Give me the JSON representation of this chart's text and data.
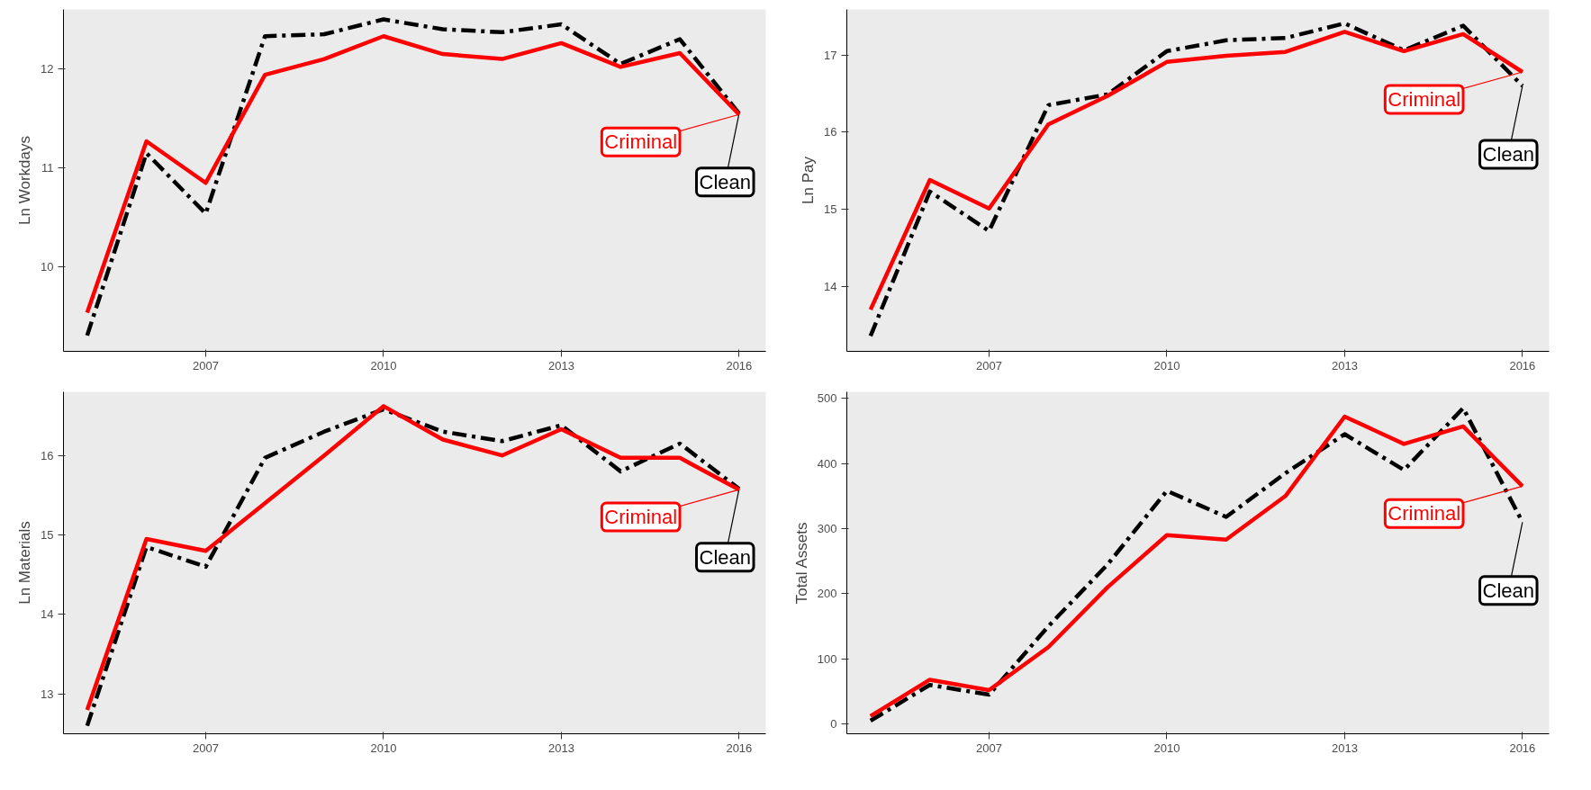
{
  "chart_data": [
    {
      "type": "line",
      "ylabel": "Ln Workdays",
      "x": [
        2005,
        2006,
        2007,
        2008,
        2009,
        2010,
        2011,
        2012,
        2013,
        2014,
        2015,
        2016
      ],
      "xlim": [
        2004.6,
        2016.45
      ],
      "xticks": [
        2007,
        2010,
        2013,
        2016
      ],
      "ylim": [
        9.15,
        12.6
      ],
      "yticks": [
        10,
        11,
        12
      ],
      "grid": false,
      "legend": false,
      "series": [
        {
          "name": "Clean",
          "color": "#000000",
          "line_style": "dashed",
          "values": [
            9.31,
            11.15,
            10.54,
            12.33,
            12.35,
            12.5,
            12.4,
            12.37,
            12.45,
            12.05,
            12.3,
            11.55
          ]
        },
        {
          "name": "Criminal",
          "color": "#ff0000",
          "line_style": "solid",
          "values": [
            9.54,
            11.27,
            10.85,
            11.94,
            12.1,
            12.33,
            12.15,
            12.1,
            12.26,
            12.02,
            12.16,
            11.54
          ]
        }
      ]
    },
    {
      "type": "line",
      "ylabel": "Ln Pay",
      "x": [
        2005,
        2006,
        2007,
        2008,
        2009,
        2010,
        2011,
        2012,
        2013,
        2014,
        2015,
        2016
      ],
      "xlim": [
        2004.6,
        2016.45
      ],
      "xticks": [
        2007,
        2010,
        2013,
        2016
      ],
      "ylim": [
        13.16,
        17.59
      ],
      "yticks": [
        14,
        15,
        16,
        17
      ],
      "grid": false,
      "legend": false,
      "series": [
        {
          "name": "Clean",
          "color": "#000000",
          "line_style": "dashed",
          "values": [
            13.36,
            15.23,
            14.72,
            16.35,
            16.49,
            17.05,
            17.19,
            17.22,
            17.41,
            17.06,
            17.38,
            16.6
          ]
        },
        {
          "name": "Criminal",
          "color": "#ff0000",
          "line_style": "solid",
          "values": [
            13.7,
            15.38,
            15.01,
            16.1,
            16.47,
            16.91,
            16.99,
            17.04,
            17.3,
            17.05,
            17.27,
            16.78
          ]
        }
      ]
    },
    {
      "type": "line",
      "ylabel": "Ln Materials",
      "x": [
        2005,
        2006,
        2007,
        2008,
        2009,
        2010,
        2011,
        2012,
        2013,
        2014,
        2015,
        2016
      ],
      "xlim": [
        2004.6,
        2016.45
      ],
      "xticks": [
        2007,
        2010,
        2013,
        2016
      ],
      "ylim": [
        12.5,
        16.8
      ],
      "yticks": [
        13,
        14,
        15,
        16
      ],
      "grid": false,
      "legend": false,
      "series": [
        {
          "name": "Clean",
          "color": "#000000",
          "line_style": "dashed",
          "values": [
            12.6,
            14.85,
            14.6,
            15.97,
            16.3,
            16.58,
            16.3,
            16.18,
            16.38,
            15.8,
            16.15,
            15.58
          ]
        },
        {
          "name": "Criminal",
          "color": "#ff0000",
          "line_style": "solid",
          "values": [
            12.8,
            14.95,
            14.8,
            15.4,
            16.0,
            16.62,
            16.2,
            16.0,
            16.33,
            15.97,
            15.97,
            15.57
          ]
        }
      ]
    },
    {
      "type": "line",
      "ylabel": "Total Assets",
      "x": [
        2005,
        2006,
        2007,
        2008,
        2009,
        2010,
        2011,
        2012,
        2013,
        2014,
        2015,
        2016
      ],
      "xlim": [
        2004.6,
        2016.45
      ],
      "xticks": [
        2007,
        2010,
        2013,
        2016
      ],
      "ylim": [
        -15,
        510
      ],
      "yticks": [
        0,
        100,
        200,
        300,
        400,
        500
      ],
      "grid": false,
      "legend": false,
      "series": [
        {
          "name": "Clean",
          "color": "#000000",
          "line_style": "dashed",
          "values": [
            5,
            60,
            45,
            150,
            245,
            358,
            318,
            385,
            445,
            390,
            485,
            310
          ]
        },
        {
          "name": "Criminal",
          "color": "#ff0000",
          "line_style": "solid",
          "values": [
            12,
            68,
            52,
            118,
            210,
            290,
            283,
            350,
            472,
            430,
            457,
            365
          ]
        }
      ]
    }
  ]
}
